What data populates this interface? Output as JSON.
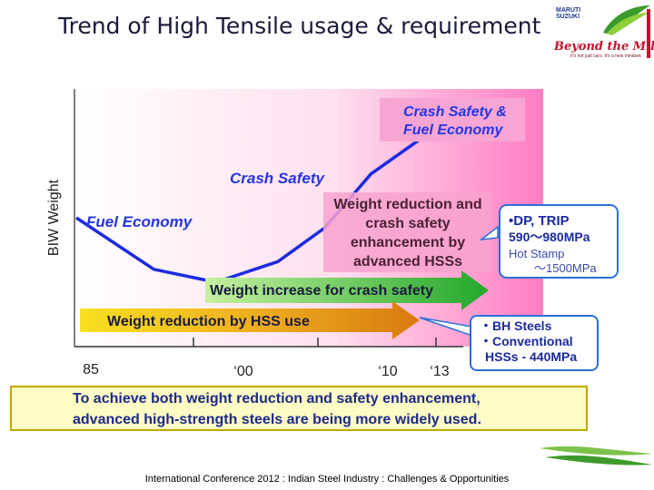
{
  "title": "Trend of High Tensile usage & requirement",
  "logo": {
    "brand_line1": "MARUTI",
    "brand_line2": "SUZUKI",
    "script_text": "Beyond the Million",
    "tagline": "It's not just cars. It's a new mindset."
  },
  "chart_data": {
    "type": "line",
    "ylabel": "BIW Weight",
    "x_ticks": [
      "85",
      "‘00",
      "‘10",
      "‘13"
    ],
    "series": [
      {
        "name": "Fuel Economy",
        "points": [
          [
            1985,
            0.5
          ],
          [
            1990,
            0.3
          ],
          [
            1994,
            0.25
          ],
          [
            1998,
            0.33
          ],
          [
            2001,
            0.46
          ],
          [
            2004,
            0.67
          ],
          [
            2008,
            0.84
          ],
          [
            2010,
            0.95
          ],
          [
            2013,
            0.91
          ]
        ]
      }
    ],
    "annotations": {
      "fuel_economy": "Fuel Economy",
      "crash_safety": "Crash Safety",
      "crash_fuel": [
        "Crash Safety &",
        "Fuel Economy"
      ],
      "weight_reduction_box": [
        "Weight reduction and",
        "crash safety",
        "enhancement by",
        "advanced HSSs"
      ],
      "dp_trip": [
        "•DP, TRIP",
        "590～980MPa",
        "Hot Stamp",
        "～1500MPa"
      ],
      "bh_steels": [
        "・BH Steels",
        "・Conventional",
        "HSSs - 440MPa"
      ]
    },
    "arrows": {
      "green": "Weight increase for crash safety",
      "orange": "Weight reduction by HSS use"
    },
    "conclusion": [
      "To achieve both weight reduction and safety enhancement,",
      "advanced high-strength steels are being more widely used."
    ],
    "colors": {
      "line": "#1c2be0",
      "green": "#32b832",
      "orange": "#e8a020",
      "pink": "#ff8cc6",
      "callout": "#2a6fd6"
    }
  },
  "footer": "International Conference 2012 : Indian Steel Industry : Challenges & Opportunities"
}
